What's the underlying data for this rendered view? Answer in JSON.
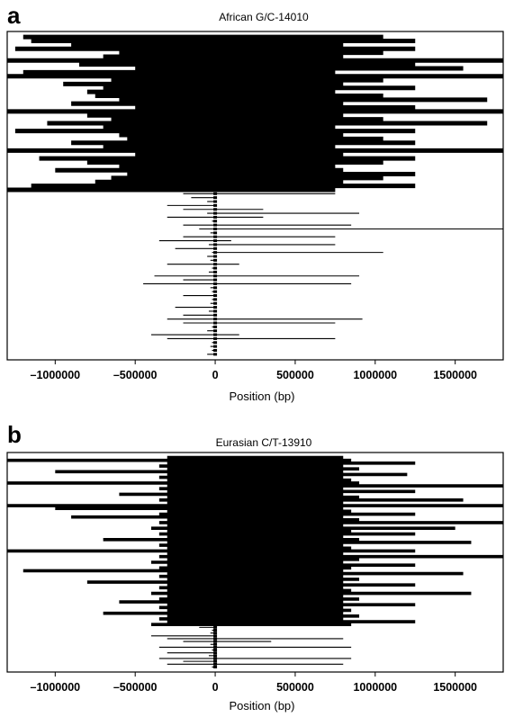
{
  "chart_data": [
    {
      "type": "haplotype-plot",
      "panel": "a",
      "title": "African G/C-14010",
      "xlabel": "Position (bp)",
      "ylabel": "",
      "xlim": [
        -1300000,
        1800000
      ],
      "xticks": [
        -1000000,
        -500000,
        0,
        500000,
        1000000,
        1500000
      ],
      "xtick_labels": [
        "–1000000",
        "–500000",
        "0",
        "500000",
        "1000000",
        "1500000"
      ],
      "grid": false,
      "haplotypes_with_allele": 40,
      "haplotypes_without_allele": 42,
      "lines": [
        [
          -1200000,
          1050000
        ],
        [
          -1150000,
          1250000
        ],
        [
          -900000,
          800000
        ],
        [
          -1250000,
          1250000
        ],
        [
          -600000,
          1050000
        ],
        [
          -700000,
          800000
        ],
        [
          -1300000,
          1800000
        ],
        [
          -850000,
          1250000
        ],
        [
          -500000,
          1550000
        ],
        [
          -1200000,
          750000
        ],
        [
          -1300000,
          1800000
        ],
        [
          -650000,
          1050000
        ],
        [
          -950000,
          800000
        ],
        [
          -700000,
          1250000
        ],
        [
          -800000,
          750000
        ],
        [
          -750000,
          1050000
        ],
        [
          -600000,
          1700000
        ],
        [
          -900000,
          800000
        ],
        [
          -500000,
          1250000
        ],
        [
          -1300000,
          1800000
        ],
        [
          -800000,
          800000
        ],
        [
          -650000,
          1050000
        ],
        [
          -1050000,
          1700000
        ],
        [
          -700000,
          750000
        ],
        [
          -1250000,
          1250000
        ],
        [
          -600000,
          800000
        ],
        [
          -550000,
          1050000
        ],
        [
          -900000,
          1250000
        ],
        [
          -700000,
          750000
        ],
        [
          -1300000,
          1800000
        ],
        [
          -500000,
          800000
        ],
        [
          -1100000,
          1250000
        ],
        [
          -800000,
          1050000
        ],
        [
          -600000,
          750000
        ],
        [
          -1000000,
          800000
        ],
        [
          -550000,
          1250000
        ],
        [
          -650000,
          1050000
        ],
        [
          -750000,
          800000
        ],
        [
          -1150000,
          1250000
        ],
        [
          -1300000,
          750000
        ],
        [
          -200000,
          750000
        ],
        [
          -150000,
          0
        ],
        [
          -50000,
          0
        ],
        [
          -300000,
          0
        ],
        [
          -200000,
          300000
        ],
        [
          -50000,
          900000
        ],
        [
          -300000,
          300000
        ],
        [
          -20000,
          0
        ],
        [
          -200000,
          850000
        ],
        [
          -100000,
          1800000
        ],
        [
          -30000,
          0
        ],
        [
          -200000,
          750000
        ],
        [
          -350000,
          100000
        ],
        [
          -40000,
          750000
        ],
        [
          -250000,
          0
        ],
        [
          -20000,
          1050000
        ],
        [
          -50000,
          0
        ],
        [
          -30000,
          0
        ],
        [
          -300000,
          150000
        ],
        [
          -20000,
          0
        ],
        [
          -40000,
          0
        ],
        [
          -380000,
          900000
        ],
        [
          -200000,
          0
        ],
        [
          -450000,
          850000
        ],
        [
          -30000,
          0
        ],
        [
          -20000,
          0
        ],
        [
          -200000,
          0
        ],
        [
          -20000,
          0
        ],
        [
          -30000,
          0
        ],
        [
          -250000,
          0
        ],
        [
          -40000,
          0
        ],
        [
          -200000,
          0
        ],
        [
          -300000,
          920000
        ],
        [
          -200000,
          750000
        ],
        [
          -20000,
          0
        ],
        [
          -50000,
          0
        ],
        [
          -400000,
          150000
        ],
        [
          -300000,
          750000
        ],
        [
          -20000,
          0
        ],
        [
          -30000,
          0
        ],
        [
          -20000,
          0
        ],
        [
          -50000,
          0
        ]
      ]
    },
    {
      "type": "haplotype-plot",
      "panel": "b",
      "title": "Eurasian C/T-13910",
      "xlabel": "Position (bp)",
      "ylabel": "",
      "xlim": [
        -1300000,
        1800000
      ],
      "xticks": [
        -1000000,
        -500000,
        0,
        500000,
        1000000,
        1500000
      ],
      "xtick_labels": [
        "–1000000",
        "–500000",
        "0",
        "500000",
        "1000000",
        "1500000"
      ],
      "grid": false,
      "haplotypes_with_allele": 60,
      "haplotypes_without_allele": 15,
      "lines": [
        [
          -300000,
          800000
        ],
        [
          -1300000,
          850000
        ],
        [
          -300000,
          1250000
        ],
        [
          -350000,
          800000
        ],
        [
          -300000,
          900000
        ],
        [
          -1000000,
          800000
        ],
        [
          -300000,
          1200000
        ],
        [
          -350000,
          800000
        ],
        [
          -300000,
          850000
        ],
        [
          -1300000,
          900000
        ],
        [
          -300000,
          1800000
        ],
        [
          -350000,
          800000
        ],
        [
          -300000,
          1250000
        ],
        [
          -600000,
          800000
        ],
        [
          -300000,
          900000
        ],
        [
          -350000,
          1550000
        ],
        [
          -300000,
          800000
        ],
        [
          -1300000,
          1800000
        ],
        [
          -1000000,
          800000
        ],
        [
          -300000,
          850000
        ],
        [
          -350000,
          1250000
        ],
        [
          -900000,
          800000
        ],
        [
          -300000,
          900000
        ],
        [
          -350000,
          1800000
        ],
        [
          -300000,
          800000
        ],
        [
          -400000,
          1500000
        ],
        [
          -300000,
          850000
        ],
        [
          -350000,
          1250000
        ],
        [
          -300000,
          800000
        ],
        [
          -700000,
          900000
        ],
        [
          -300000,
          1600000
        ],
        [
          -350000,
          800000
        ],
        [
          -300000,
          850000
        ],
        [
          -1300000,
          1250000
        ],
        [
          -300000,
          800000
        ],
        [
          -350000,
          1800000
        ],
        [
          -300000,
          900000
        ],
        [
          -400000,
          800000
        ],
        [
          -300000,
          1250000
        ],
        [
          -350000,
          850000
        ],
        [
          -1200000,
          800000
        ],
        [
          -300000,
          1550000
        ],
        [
          -350000,
          800000
        ],
        [
          -300000,
          900000
        ],
        [
          -800000,
          800000
        ],
        [
          -300000,
          1250000
        ],
        [
          -350000,
          800000
        ],
        [
          -300000,
          850000
        ],
        [
          -400000,
          1600000
        ],
        [
          -300000,
          800000
        ],
        [
          -350000,
          900000
        ],
        [
          -600000,
          800000
        ],
        [
          -300000,
          1250000
        ],
        [
          -350000,
          800000
        ],
        [
          -300000,
          850000
        ],
        [
          -700000,
          800000
        ],
        [
          -300000,
          900000
        ],
        [
          -350000,
          800000
        ],
        [
          -300000,
          1250000
        ],
        [
          -400000,
          850000
        ],
        [
          -100000,
          0
        ],
        [
          -20000,
          0
        ],
        [
          -30000,
          0
        ],
        [
          -400000,
          0
        ],
        [
          -300000,
          800000
        ],
        [
          -200000,
          350000
        ],
        [
          -30000,
          0
        ],
        [
          -350000,
          850000
        ],
        [
          -20000,
          0
        ],
        [
          -300000,
          0
        ],
        [
          -40000,
          0
        ],
        [
          -350000,
          850000
        ],
        [
          -200000,
          0
        ],
        [
          -300000,
          800000
        ],
        [
          -20000,
          0
        ]
      ]
    }
  ]
}
